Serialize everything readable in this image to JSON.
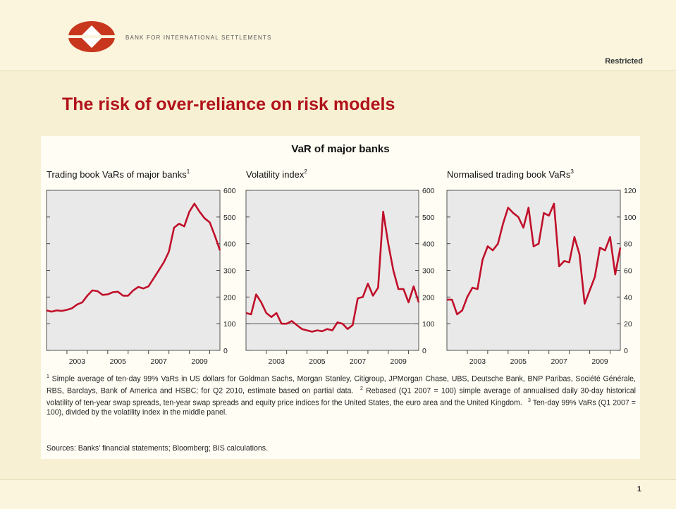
{
  "header": {
    "organisation": "BANK FOR INTERNATIONAL SETTLEMENTS",
    "classification": "Restricted"
  },
  "slide_title": "The risk of over-reliance on risk models",
  "figure_title": "VaR of major banks",
  "chart_data": [
    {
      "type": "line",
      "title": "Trading book VaRs of major banks",
      "title_note": "1",
      "x": [
        2002,
        2002.25,
        2002.5,
        2002.75,
        2003,
        2003.25,
        2003.5,
        2003.75,
        2004,
        2004.25,
        2004.5,
        2004.75,
        2005,
        2005.25,
        2005.5,
        2005.75,
        2006,
        2006.25,
        2006.5,
        2006.75,
        2007,
        2007.25,
        2007.5,
        2007.75,
        2008,
        2008.25,
        2008.5,
        2008.75,
        2009,
        2009.25,
        2009.5,
        2009.75,
        2010,
        2010.25,
        2010.5
      ],
      "series": [
        {
          "color": "#c0102a",
          "values": [
            150,
            145,
            150,
            148,
            152,
            158,
            172,
            180,
            205,
            225,
            222,
            208,
            210,
            218,
            220,
            205,
            205,
            225,
            238,
            232,
            240,
            270,
            300,
            330,
            370,
            460,
            475,
            465,
            520,
            550,
            520,
            495,
            480,
            430,
            375
          ]
        }
      ],
      "xlim": [
        2002,
        2010.5
      ],
      "xticks": [
        {
          "value": 2003.5,
          "label": "2003"
        },
        {
          "value": 2005.5,
          "label": "2005"
        },
        {
          "value": 2007.5,
          "label": "2007"
        },
        {
          "value": 2009.5,
          "label": "2009"
        }
      ],
      "xminor_ticks": [
        2003,
        2004,
        2005,
        2006,
        2007,
        2008,
        2009,
        2010
      ],
      "ylim": [
        0,
        600
      ],
      "yticks": [
        0,
        100,
        200,
        300,
        400,
        500,
        600
      ]
    },
    {
      "type": "line",
      "title": "Volatility index",
      "title_note": "2",
      "x": [
        2002,
        2002.25,
        2002.5,
        2002.75,
        2003,
        2003.25,
        2003.5,
        2003.75,
        2004,
        2004.25,
        2004.5,
        2004.75,
        2005,
        2005.25,
        2005.5,
        2005.75,
        2006,
        2006.25,
        2006.5,
        2006.75,
        2007,
        2007.25,
        2007.5,
        2007.75,
        2008,
        2008.25,
        2008.5,
        2008.75,
        2009,
        2009.25,
        2009.5,
        2009.75,
        2010,
        2010.25,
        2010.5
      ],
      "series": [
        {
          "color": "#c0102a",
          "values": [
            140,
            135,
            210,
            180,
            140,
            125,
            140,
            100,
            100,
            110,
            95,
            80,
            75,
            70,
            75,
            72,
            80,
            75,
            105,
            100,
            80,
            95,
            195,
            200,
            250,
            205,
            235,
            520,
            400,
            300,
            230,
            230,
            180,
            240,
            180
          ]
        }
      ],
      "xlim": [
        2002,
        2010.5
      ],
      "xticks": [
        {
          "value": 2003.5,
          "label": "2003"
        },
        {
          "value": 2005.5,
          "label": "2005"
        },
        {
          "value": 2007.5,
          "label": "2007"
        },
        {
          "value": 2009.5,
          "label": "2009"
        }
      ],
      "xminor_ticks": [
        2003,
        2004,
        2005,
        2006,
        2007,
        2008,
        2009,
        2010
      ],
      "ylim": [
        0,
        600
      ],
      "yticks": [
        0,
        100,
        200,
        300,
        400,
        500,
        600
      ],
      "reference_line": 100
    },
    {
      "type": "line",
      "title": "Normalised trading book VaRs",
      "title_note": "3",
      "x": [
        2002,
        2002.25,
        2002.5,
        2002.75,
        2003,
        2003.25,
        2003.5,
        2003.75,
        2004,
        2004.25,
        2004.5,
        2004.75,
        2005,
        2005.25,
        2005.5,
        2005.75,
        2006,
        2006.25,
        2006.5,
        2006.75,
        2007,
        2007.25,
        2007.5,
        2007.75,
        2008,
        2008.25,
        2008.5,
        2008.75,
        2009,
        2009.25,
        2009.5,
        2009.75,
        2010,
        2010.25,
        2010.5
      ],
      "series": [
        {
          "color": "#c0102a",
          "values": [
            38,
            38,
            27,
            30,
            40,
            47,
            46,
            68,
            78,
            75,
            80,
            95,
            107,
            103,
            100,
            92,
            107,
            78,
            80,
            103,
            101,
            110,
            63,
            67,
            66,
            85,
            72,
            35,
            45,
            55,
            77,
            75,
            85,
            57,
            77
          ]
        }
      ],
      "xlim": [
        2002,
        2010.5
      ],
      "xticks": [
        {
          "value": 2003.5,
          "label": "2003"
        },
        {
          "value": 2005.5,
          "label": "2005"
        },
        {
          "value": 2007.5,
          "label": "2007"
        },
        {
          "value": 2009.5,
          "label": "2009"
        }
      ],
      "xminor_ticks": [
        2003,
        2004,
        2005,
        2006,
        2007,
        2008,
        2009,
        2010
      ],
      "ylim": [
        0,
        120
      ],
      "yticks": [
        0,
        20,
        40,
        60,
        80,
        100,
        120
      ]
    }
  ],
  "footnotes": [
    {
      "marker": "1",
      "text": "Simple average of ten-day 99% VaRs in US dollars for Goldman Sachs, Morgan Stanley, Citigroup, JPMorgan Chase, UBS, Deutsche Bank, BNP Paribas, Société Générale, RBS, Barclays, Bank of America and HSBC; for Q2 2010, estimate based on partial data."
    },
    {
      "marker": "2",
      "text": "Rebased (Q1 2007 = 100) simple average of annualised daily 30-day historical volatility of ten-year swap spreads, ten-year swap spreads and equity price indices for the United States, the euro area and the United Kingdom."
    },
    {
      "marker": "3",
      "text": "Ten-day 99% VaRs (Q1 2007 = 100), divided by the volatility index in the middle panel."
    }
  ],
  "sources": "Sources: Banks’ financial statements; Bloomberg; BIS calculations.",
  "page_number": "1"
}
